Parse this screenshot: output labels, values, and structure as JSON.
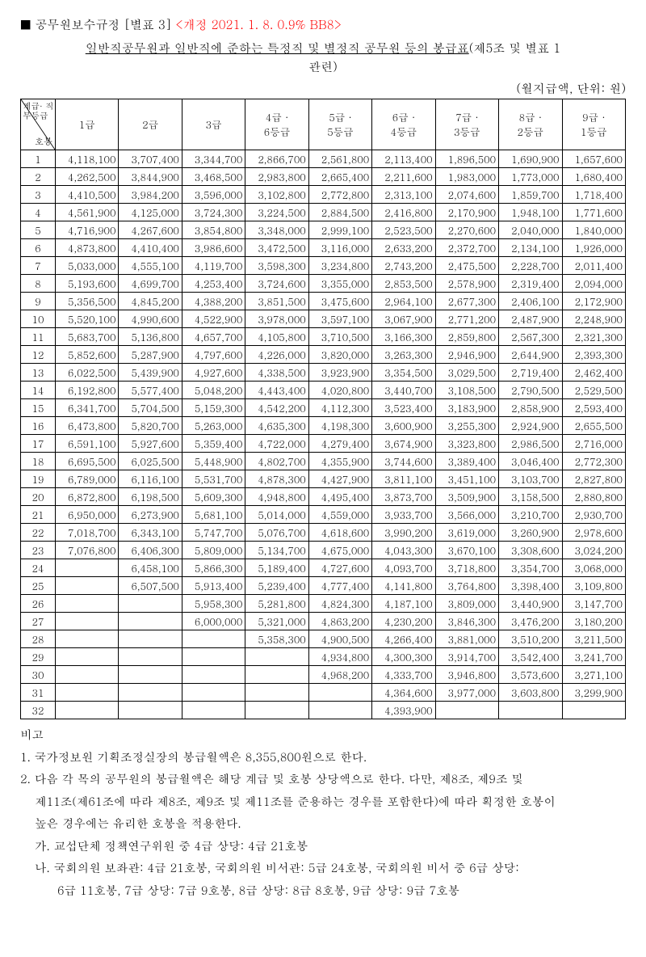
{
  "header": {
    "square": "■",
    "reg": "공무원보수규정 [별표 3]",
    "amend": "<개정 2021. 1. 8. 0.9% BB8>"
  },
  "title": {
    "underlined": "일반직공무원과 일반직에 준하는 특정직 및 별정직 공무원 등의 봉급표",
    "rest": "(제5조 및 별표 1",
    "line2": "관련)"
  },
  "unit": "(월지급액, 단위:  원)",
  "diag": {
    "top": "계급·\n직무등급",
    "bot": "호봉"
  },
  "columns": [
    "1급",
    "2급",
    "3급",
    "4급 ·\n6등급",
    "5급 ·\n5등급",
    "6급 ·\n4등급",
    "7급 ·\n3등급",
    "8급 ·\n2등급",
    "9급 ·\n1등급"
  ],
  "rows": [
    [
      "4,118,100",
      "3,707,400",
      "3,344,700",
      "2,866,700",
      "2,561,800",
      "2,113,400",
      "1,896,500",
      "1,690,900",
      "1,657,600"
    ],
    [
      "4,262,500",
      "3,844,900",
      "3,468,500",
      "2,983,800",
      "2,665,400",
      "2,211,600",
      "1,983,000",
      "1,773,000",
      "1,680,400"
    ],
    [
      "4,410,500",
      "3,984,200",
      "3,596,000",
      "3,102,800",
      "2,772,800",
      "2,313,100",
      "2,074,600",
      "1,859,700",
      "1,718,400"
    ],
    [
      "4,561,900",
      "4,125,000",
      "3,724,300",
      "3,224,500",
      "2,884,500",
      "2,416,800",
      "2,170,900",
      "1,948,100",
      "1,771,600"
    ],
    [
      "4,716,900",
      "4,267,600",
      "3,854,800",
      "3,348,000",
      "2,999,100",
      "2,523,500",
      "2,270,600",
      "2,040,000",
      "1,840,000"
    ],
    [
      "4,873,800",
      "4,410,400",
      "3,986,600",
      "3,472,500",
      "3,116,000",
      "2,633,200",
      "2,372,700",
      "2,134,100",
      "1,926,000"
    ],
    [
      "5,033,000",
      "4,555,100",
      "4,119,700",
      "3,598,300",
      "3,234,800",
      "2,743,200",
      "2,475,500",
      "2,228,700",
      "2,011,400"
    ],
    [
      "5,193,600",
      "4,699,700",
      "4,253,400",
      "3,724,600",
      "3,355,000",
      "2,853,500",
      "2,578,900",
      "2,319,400",
      "2,094,000"
    ],
    [
      "5,356,500",
      "4,845,200",
      "4,388,200",
      "3,851,500",
      "3,475,600",
      "2,964,100",
      "2,677,300",
      "2,406,100",
      "2,172,900"
    ],
    [
      "5,520,100",
      "4,990,600",
      "4,522,900",
      "3,978,000",
      "3,597,100",
      "3,067,900",
      "2,771,200",
      "2,487,900",
      "2,248,900"
    ],
    [
      "5,683,700",
      "5,136,800",
      "4,657,700",
      "4,105,800",
      "3,710,500",
      "3,166,300",
      "2,859,800",
      "2,567,300",
      "2,321,300"
    ],
    [
      "5,852,600",
      "5,287,900",
      "4,797,600",
      "4,226,000",
      "3,820,000",
      "3,263,300",
      "2,946,900",
      "2,644,900",
      "2,393,300"
    ],
    [
      "6,022,500",
      "5,439,900",
      "4,927,600",
      "4,338,500",
      "3,923,900",
      "3,354,500",
      "3,029,500",
      "2,719,400",
      "2,462,400"
    ],
    [
      "6,192,800",
      "5,577,400",
      "5,048,200",
      "4,443,400",
      "4,020,800",
      "3,440,700",
      "3,108,500",
      "2,790,500",
      "2,529,500"
    ],
    [
      "6,341,700",
      "5,704,500",
      "5,159,300",
      "4,542,200",
      "4,112,300",
      "3,523,400",
      "3,183,900",
      "2,858,900",
      "2,593,400"
    ],
    [
      "6,473,800",
      "5,820,700",
      "5,263,000",
      "4,635,300",
      "4,198,300",
      "3,600,900",
      "3,255,300",
      "2,924,900",
      "2,655,500"
    ],
    [
      "6,591,100",
      "5,927,600",
      "5,359,400",
      "4,722,000",
      "4,279,400",
      "3,674,900",
      "3,323,800",
      "2,986,500",
      "2,716,000"
    ],
    [
      "6,695,500",
      "6,025,500",
      "5,448,900",
      "4,802,700",
      "4,355,900",
      "3,744,600",
      "3,389,400",
      "3,046,400",
      "2,772,300"
    ],
    [
      "6,789,000",
      "6,116,100",
      "5,531,700",
      "4,878,300",
      "4,427,900",
      "3,811,100",
      "3,451,100",
      "3,103,700",
      "2,827,800"
    ],
    [
      "6,872,800",
      "6,198,500",
      "5,609,300",
      "4,948,800",
      "4,495,400",
      "3,873,700",
      "3,509,900",
      "3,158,500",
      "2,880,800"
    ],
    [
      "6,950,000",
      "6,273,900",
      "5,681,100",
      "5,014,000",
      "4,559,000",
      "3,933,700",
      "3,566,000",
      "3,210,700",
      "2,930,700"
    ],
    [
      "7,018,700",
      "6,343,100",
      "5,747,700",
      "5,076,700",
      "4,618,600",
      "3,990,200",
      "3,619,000",
      "3,260,900",
      "2,978,600"
    ],
    [
      "7,076,800",
      "6,406,300",
      "5,809,000",
      "5,134,700",
      "4,675,000",
      "4,043,300",
      "3,670,100",
      "3,308,600",
      "3,024,200"
    ],
    [
      "",
      "6,458,100",
      "5,866,300",
      "5,189,400",
      "4,727,600",
      "4,093,700",
      "3,718,800",
      "3,354,700",
      "3,068,000"
    ],
    [
      "",
      "6,507,500",
      "5,913,400",
      "5,239,400",
      "4,777,400",
      "4,141,800",
      "3,764,800",
      "3,398,400",
      "3,109,800"
    ],
    [
      "",
      "",
      "5,958,300",
      "5,281,800",
      "4,824,300",
      "4,187,100",
      "3,809,000",
      "3,440,900",
      "3,147,700"
    ],
    [
      "",
      "",
      "6,000,000",
      "5,321,000",
      "4,863,200",
      "4,230,200",
      "3,846,300",
      "3,476,200",
      "3,180,200"
    ],
    [
      "",
      "",
      "",
      "5,358,300",
      "4,900,500",
      "4,266,400",
      "3,881,000",
      "3,510,200",
      "3,211,500"
    ],
    [
      "",
      "",
      "",
      "",
      "4,934,800",
      "4,300,300",
      "3,914,700",
      "3,542,400",
      "3,241,700"
    ],
    [
      "",
      "",
      "",
      "",
      "4,968,200",
      "4,333,700",
      "3,946,800",
      "3,573,600",
      "3,271,100"
    ],
    [
      "",
      "",
      "",
      "",
      "",
      "4,364,600",
      "3,977,000",
      "3,603,800",
      "3,299,900"
    ],
    [
      "",
      "",
      "",
      "",
      "",
      "4,393,900",
      "",
      "",
      ""
    ]
  ],
  "notes": {
    "heading": "비고",
    "n1": "1. 국가정보원 기획조정실장의 봉급월액은 8,355,800원으로 한다.",
    "n2a": "2. 다음 각 목의 공무원의 봉급월액은 해당 계급 및 호봉 상당액으로 한다. 다만, 제8조, 제9조 및",
    "n2b": "제11조(제61조에 따라 제8조, 제9조 및 제11조를 준용하는 경우를 포함한다)에 따라 획정한 호봉이",
    "n2c": "높은 경우에는 유리한 호봉을 적용한다.",
    "ga": "가. 교섭단체 정책연구위원 중 4급 상당: 4급 21호봉",
    "na1": "나. 국회의원 보좌관: 4급 21호봉, 국회의원 비서관: 5급 24호봉, 국회의원 비서 중 6급 상당:",
    "na2": "6급 11호봉, 7급 상당: 7급 9호봉, 8급 상당: 8급 8호봉, 9급 상당: 9급 7호봉"
  }
}
